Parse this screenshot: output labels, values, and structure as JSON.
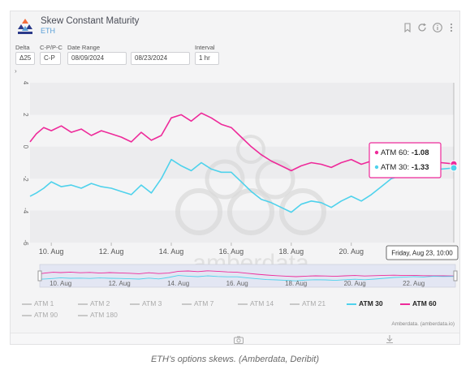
{
  "header": {
    "title": "Skew Constant Maturity",
    "subtitle": "ETH"
  },
  "controls": {
    "delta": {
      "label": "Delta",
      "value": "Δ25"
    },
    "cpp": {
      "label": "C-P/P-C",
      "value": "C-P"
    },
    "date_range": {
      "label": "Date Range",
      "start": "08/09/2024",
      "end": "08/23/2024"
    },
    "interval": {
      "label": "Interval",
      "value": "1 hr"
    }
  },
  "tooltip": {
    "rows": [
      {
        "label": "ATM 60:",
        "value": "-1.08",
        "color": "#ee2a9a"
      },
      {
        "label": "ATM 30:",
        "value": "-1.33",
        "color": "#4fd2ec"
      }
    ],
    "date": "Friday, Aug 23, 10:00"
  },
  "legend": [
    {
      "label": "ATM 1",
      "active": false
    },
    {
      "label": "ATM 2",
      "active": false
    },
    {
      "label": "ATM 3",
      "active": false
    },
    {
      "label": "ATM 7",
      "active": false
    },
    {
      "label": "ATM 14",
      "active": false
    },
    {
      "label": "ATM 21",
      "active": false
    },
    {
      "label": "ATM 30",
      "active": true,
      "color": "#4fd2ec"
    },
    {
      "label": "ATM 60",
      "active": true,
      "color": "#ee2a9a"
    },
    {
      "label": "ATM 90",
      "active": false
    },
    {
      "label": "ATM 180",
      "active": false
    }
  ],
  "credit": "Amberdata. (amberdata.io)",
  "watermark": "amberdata",
  "caption": "ETH’s options skews. (Amberdata, Deribit)",
  "chart_data": {
    "type": "line",
    "yticks": [
      "4",
      "2",
      "0",
      "-2",
      "-4",
      "-6"
    ],
    "ylim": [
      -6,
      4
    ],
    "xlim": [
      "2024-08-09T07:00",
      "2024-08-23T10:00"
    ],
    "xticks": [
      {
        "label": "10. Aug",
        "t": "2024-08-10T00:00"
      },
      {
        "label": "12. Aug",
        "t": "2024-08-12T00:00"
      },
      {
        "label": "14. Aug",
        "t": "2024-08-14T00:00"
      },
      {
        "label": "16. Aug",
        "t": "2024-08-16T00:00"
      },
      {
        "label": "18. Aug",
        "t": "2024-08-18T00:00"
      },
      {
        "label": "20. Aug",
        "t": "2024-08-20T00:00"
      }
    ],
    "navigator_xticks": [
      {
        "label": "10. Aug",
        "t": "2024-08-10T00:00"
      },
      {
        "label": "12. Aug",
        "t": "2024-08-12T00:00"
      },
      {
        "label": "14. Aug",
        "t": "2024-08-14T00:00"
      },
      {
        "label": "16. Aug",
        "t": "2024-08-16T00:00"
      },
      {
        "label": "18. Aug",
        "t": "2024-08-18T00:00"
      },
      {
        "label": "20. Aug",
        "t": "2024-08-20T00:00"
      },
      {
        "label": "22. Aug",
        "t": "2024-08-22T00:00"
      }
    ],
    "series": [
      {
        "name": "ATM 60",
        "color": "#ee2a9a",
        "points": [
          [
            "2024-08-09T07:00",
            0.3
          ],
          [
            "2024-08-09T12:00",
            0.8
          ],
          [
            "2024-08-09T18:00",
            1.2
          ],
          [
            "2024-08-10T00:00",
            1.0
          ],
          [
            "2024-08-10T08:00",
            1.3
          ],
          [
            "2024-08-10T16:00",
            0.9
          ],
          [
            "2024-08-11T00:00",
            1.1
          ],
          [
            "2024-08-11T08:00",
            0.7
          ],
          [
            "2024-08-11T16:00",
            1.0
          ],
          [
            "2024-08-12T00:00",
            0.8
          ],
          [
            "2024-08-12T08:00",
            0.6
          ],
          [
            "2024-08-12T16:00",
            0.3
          ],
          [
            "2024-08-13T00:00",
            0.9
          ],
          [
            "2024-08-13T08:00",
            0.4
          ],
          [
            "2024-08-13T16:00",
            0.7
          ],
          [
            "2024-08-14T00:00",
            1.8
          ],
          [
            "2024-08-14T08:00",
            2.0
          ],
          [
            "2024-08-14T16:00",
            1.6
          ],
          [
            "2024-08-15T00:00",
            2.1
          ],
          [
            "2024-08-15T08:00",
            1.8
          ],
          [
            "2024-08-15T16:00",
            1.4
          ],
          [
            "2024-08-16T00:00",
            1.2
          ],
          [
            "2024-08-16T08:00",
            0.6
          ],
          [
            "2024-08-16T16:00",
            0.0
          ],
          [
            "2024-08-17T00:00",
            -0.5
          ],
          [
            "2024-08-17T08:00",
            -0.9
          ],
          [
            "2024-08-17T16:00",
            -1.2
          ],
          [
            "2024-08-18T00:00",
            -1.5
          ],
          [
            "2024-08-18T08:00",
            -1.2
          ],
          [
            "2024-08-18T16:00",
            -1.0
          ],
          [
            "2024-08-19T00:00",
            -1.1
          ],
          [
            "2024-08-19T08:00",
            -1.3
          ],
          [
            "2024-08-19T16:00",
            -1.0
          ],
          [
            "2024-08-20T00:00",
            -0.8
          ],
          [
            "2024-08-20T08:00",
            -1.1
          ],
          [
            "2024-08-20T16:00",
            -0.9
          ],
          [
            "2024-08-21T00:00",
            -0.7
          ],
          [
            "2024-08-21T08:00",
            -0.6
          ],
          [
            "2024-08-21T16:00",
            -0.8
          ],
          [
            "2024-08-22T00:00",
            -0.7
          ],
          [
            "2024-08-22T08:00",
            -0.9
          ],
          [
            "2024-08-22T16:00",
            -1.0
          ],
          [
            "2024-08-23T00:00",
            -1.0
          ],
          [
            "2024-08-23T10:00",
            -1.08
          ]
        ]
      },
      {
        "name": "ATM 30",
        "color": "#4fd2ec",
        "points": [
          [
            "2024-08-09T07:00",
            -3.1
          ],
          [
            "2024-08-09T12:00",
            -2.9
          ],
          [
            "2024-08-09T18:00",
            -2.6
          ],
          [
            "2024-08-10T00:00",
            -2.2
          ],
          [
            "2024-08-10T08:00",
            -2.5
          ],
          [
            "2024-08-10T16:00",
            -2.4
          ],
          [
            "2024-08-11T00:00",
            -2.6
          ],
          [
            "2024-08-11T08:00",
            -2.3
          ],
          [
            "2024-08-11T16:00",
            -2.5
          ],
          [
            "2024-08-12T00:00",
            -2.6
          ],
          [
            "2024-08-12T08:00",
            -2.8
          ],
          [
            "2024-08-12T16:00",
            -3.0
          ],
          [
            "2024-08-13T00:00",
            -2.4
          ],
          [
            "2024-08-13T08:00",
            -2.9
          ],
          [
            "2024-08-13T16:00",
            -2.0
          ],
          [
            "2024-08-14T00:00",
            -0.8
          ],
          [
            "2024-08-14T08:00",
            -1.2
          ],
          [
            "2024-08-14T16:00",
            -1.5
          ],
          [
            "2024-08-15T00:00",
            -1.0
          ],
          [
            "2024-08-15T08:00",
            -1.4
          ],
          [
            "2024-08-15T16:00",
            -1.6
          ],
          [
            "2024-08-16T00:00",
            -1.6
          ],
          [
            "2024-08-16T08:00",
            -2.2
          ],
          [
            "2024-08-16T16:00",
            -2.8
          ],
          [
            "2024-08-17T00:00",
            -3.3
          ],
          [
            "2024-08-17T08:00",
            -3.5
          ],
          [
            "2024-08-17T16:00",
            -3.8
          ],
          [
            "2024-08-18T00:00",
            -4.1
          ],
          [
            "2024-08-18T08:00",
            -3.6
          ],
          [
            "2024-08-18T16:00",
            -3.4
          ],
          [
            "2024-08-19T00:00",
            -3.5
          ],
          [
            "2024-08-19T08:00",
            -3.8
          ],
          [
            "2024-08-19T16:00",
            -3.4
          ],
          [
            "2024-08-20T00:00",
            -3.1
          ],
          [
            "2024-08-20T08:00",
            -3.4
          ],
          [
            "2024-08-20T16:00",
            -3.0
          ],
          [
            "2024-08-21T00:00",
            -2.5
          ],
          [
            "2024-08-21T08:00",
            -2.0
          ],
          [
            "2024-08-21T16:00",
            -1.8
          ],
          [
            "2024-08-22T00:00",
            -1.5
          ],
          [
            "2024-08-22T08:00",
            -1.7
          ],
          [
            "2024-08-22T16:00",
            -1.3
          ],
          [
            "2024-08-23T00:00",
            -1.4
          ],
          [
            "2024-08-23T10:00",
            -1.33
          ]
        ]
      }
    ]
  }
}
